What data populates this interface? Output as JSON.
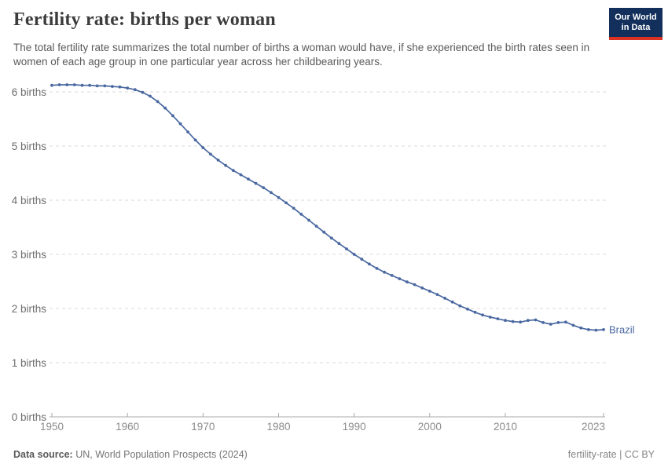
{
  "header": {
    "title": "Fertility rate: births per woman",
    "subtitle": "The total fertility rate summarizes the total number of births a woman would have, if she experienced the birth rates seen in women of each age group in one particular year across her childbearing years."
  },
  "logo": {
    "line1": "Our World",
    "line2": "in Data",
    "bg_color": "#12305b",
    "bar_color": "#dc3224"
  },
  "chart_data": {
    "type": "line",
    "title": "Fertility rate: births per woman",
    "xlabel": "",
    "ylabel": "births per woman",
    "ylim": [
      0,
      6.35
    ],
    "grid": "horizontal-dashed",
    "legend_position": "end-of-line",
    "xticks": [
      1950,
      1960,
      1970,
      1980,
      1990,
      2000,
      2010,
      2023
    ],
    "ytick_values": [
      0,
      1,
      2,
      3,
      4,
      5,
      6
    ],
    "ytick_labels": [
      "0 births",
      "1 births",
      "2 births",
      "3 births",
      "4 births",
      "5 births",
      "6 births"
    ],
    "x": [
      1950,
      1951,
      1952,
      1953,
      1954,
      1955,
      1956,
      1957,
      1958,
      1959,
      1960,
      1961,
      1962,
      1963,
      1964,
      1965,
      1966,
      1967,
      1968,
      1969,
      1970,
      1971,
      1972,
      1973,
      1974,
      1975,
      1976,
      1977,
      1978,
      1979,
      1980,
      1981,
      1982,
      1983,
      1984,
      1985,
      1986,
      1987,
      1988,
      1989,
      1990,
      1991,
      1992,
      1993,
      1994,
      1995,
      1996,
      1997,
      1998,
      1999,
      2000,
      2001,
      2002,
      2003,
      2004,
      2005,
      2006,
      2007,
      2008,
      2009,
      2010,
      2011,
      2012,
      2013,
      2014,
      2015,
      2016,
      2017,
      2018,
      2019,
      2020,
      2021,
      2022,
      2023
    ],
    "series": [
      {
        "name": "Brazil",
        "color": "#4a68a0",
        "values": [
          6.12,
          6.13,
          6.13,
          6.13,
          6.12,
          6.12,
          6.11,
          6.11,
          6.1,
          6.09,
          6.07,
          6.04,
          5.99,
          5.92,
          5.82,
          5.7,
          5.56,
          5.41,
          5.26,
          5.11,
          4.97,
          4.85,
          4.74,
          4.64,
          4.55,
          4.47,
          4.39,
          4.31,
          4.23,
          4.14,
          4.05,
          3.95,
          3.85,
          3.74,
          3.63,
          3.52,
          3.41,
          3.3,
          3.2,
          3.1,
          3.0,
          2.91,
          2.82,
          2.74,
          2.67,
          2.61,
          2.55,
          2.49,
          2.44,
          2.38,
          2.32,
          2.26,
          2.19,
          2.12,
          2.05,
          1.99,
          1.93,
          1.88,
          1.84,
          1.81,
          1.78,
          1.76,
          1.75,
          1.78,
          1.79,
          1.74,
          1.71,
          1.74,
          1.75,
          1.69,
          1.64,
          1.61,
          1.6,
          1.61
        ]
      }
    ],
    "colors": {
      "grid": "#d9d9d9",
      "axis": "#a8a8a8",
      "ytick_text": "#6d6d6d",
      "xtick_text": "#8c8c8c"
    }
  },
  "footer": {
    "source_label": "Data source:",
    "source_value": "UN, World Population Prospects (2024)",
    "note_right": "fertility-rate | CC BY"
  }
}
